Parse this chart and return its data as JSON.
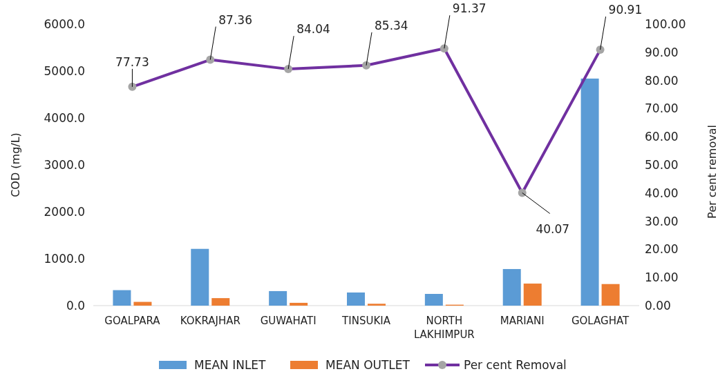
{
  "chart_data": {
    "type": "bar",
    "categories": [
      "GOALPARA",
      "KOKRAJHAR",
      "GUWAHATI",
      "TINSUKIA",
      "NORTH LAKHIMPUR",
      "MARIANI",
      "GOLAGHAT"
    ],
    "ylabel": "COD (mg/L)",
    "y2label": "Per cent removal",
    "ylim": [
      0,
      6000
    ],
    "yticks": [
      {
        "value": 0,
        "label": "0.0"
      },
      {
        "value": 1000,
        "label": "1000.0"
      },
      {
        "value": 2000,
        "label": "2000.0"
      },
      {
        "value": 3000,
        "label": "3000.0"
      },
      {
        "value": 4000,
        "label": "4000.0"
      },
      {
        "value": 5000,
        "label": "5000.0"
      },
      {
        "value": 6000,
        "label": "6000.0"
      }
    ],
    "y2lim": [
      0,
      100
    ],
    "y2ticks": [
      {
        "value": 0,
        "label": "0.00"
      },
      {
        "value": 10,
        "label": "10.00"
      },
      {
        "value": 20,
        "label": "20.00"
      },
      {
        "value": 30,
        "label": "30.00"
      },
      {
        "value": 40,
        "label": "40.00"
      },
      {
        "value": 50,
        "label": "50.00"
      },
      {
        "value": 60,
        "label": "60.00"
      },
      {
        "value": 70,
        "label": "70.00"
      },
      {
        "value": 80,
        "label": "80.00"
      },
      {
        "value": 90,
        "label": "90.00"
      },
      {
        "value": 100,
        "label": "100.00"
      }
    ],
    "legend": "bottom",
    "marker": "circle",
    "series": [
      {
        "name": "MEAN INLET",
        "color": "#5b9bd5",
        "values": [
          330,
          1210,
          310,
          280,
          250,
          780,
          4840
        ]
      },
      {
        "name": "MEAN OUTLET",
        "color": "#ed7d31",
        "values": [
          80,
          160,
          60,
          40,
          20,
          470,
          460
        ]
      },
      {
        "name": "Per cent Removal",
        "type": "line",
        "axis": "y2",
        "color": "#7030a0",
        "values": [
          77.73,
          87.36,
          84.04,
          85.34,
          91.37,
          40.07,
          90.91
        ],
        "value_labels": [
          "77.73",
          "87.36",
          "84.04",
          "85.34",
          "91.37",
          "40.07",
          "90.91"
        ]
      }
    ]
  }
}
